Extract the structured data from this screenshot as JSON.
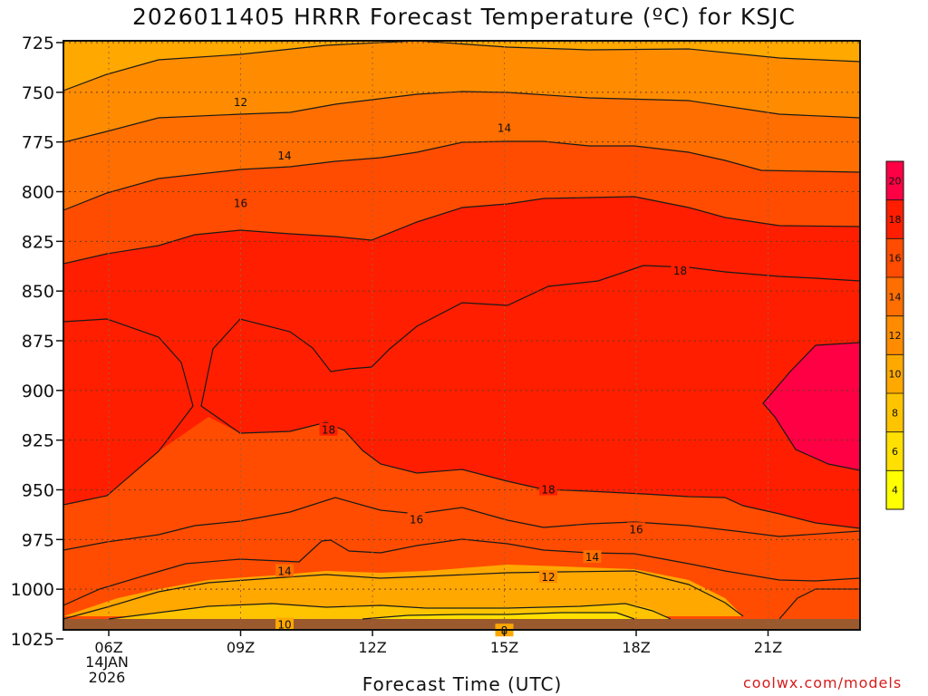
{
  "title": "2026011405 HRRR Forecast Temperature (ºC) for KSJC",
  "xlabel": "Forecast Time (UTC)",
  "credit": "coolwx.com/models",
  "date": {
    "day": "14JAN",
    "year": "2026"
  },
  "colors": {
    "terrain": "#9b5a2e",
    "contour": "#1a1a1a",
    "bands": [
      "#ffff00",
      "#ffe000",
      "#ffc400",
      "#ffa800",
      "#ff8c00",
      "#ff6e00",
      "#ff4c00",
      "#ff1e00",
      "#ff0045"
    ]
  },
  "chart_data": {
    "type": "contour",
    "x": [
      "06Z",
      "09Z",
      "12Z",
      "15Z",
      "18Z",
      "21Z"
    ],
    "y_axis": {
      "label": "",
      "ticks": [
        725,
        750,
        775,
        800,
        825,
        850,
        875,
        900,
        925,
        950,
        975,
        1000,
        1025
      ],
      "inverted": true
    },
    "colorbar": {
      "levels": [
        4,
        6,
        8,
        10,
        12,
        14,
        16,
        18,
        20
      ]
    },
    "contour_labels": [
      {
        "text": "12",
        "time": "09Z",
        "pressure": 755
      },
      {
        "text": "14",
        "time": "15Z",
        "pressure": 768
      },
      {
        "text": "14",
        "time": "10Z",
        "pressure": 782
      },
      {
        "text": "16",
        "time": "09Z",
        "pressure": 806
      },
      {
        "text": "18",
        "time": "19Z",
        "pressure": 840
      },
      {
        "text": "18",
        "time": "11Z",
        "pressure": 920
      },
      {
        "text": "18",
        "time": "16Z",
        "pressure": 950
      },
      {
        "text": "16",
        "time": "13Z",
        "pressure": 965
      },
      {
        "text": "16",
        "time": "18Z",
        "pressure": 970
      },
      {
        "text": "14",
        "time": "17Z",
        "pressure": 984
      },
      {
        "text": "14",
        "time": "10Z",
        "pressure": 991
      },
      {
        "text": "12",
        "time": "16Z",
        "pressure": 994
      },
      {
        "text": "10",
        "time": "10Z",
        "pressure": 1018
      },
      {
        "text": "8",
        "time": "15Z",
        "pressure": 1021
      }
    ],
    "grid": true
  }
}
